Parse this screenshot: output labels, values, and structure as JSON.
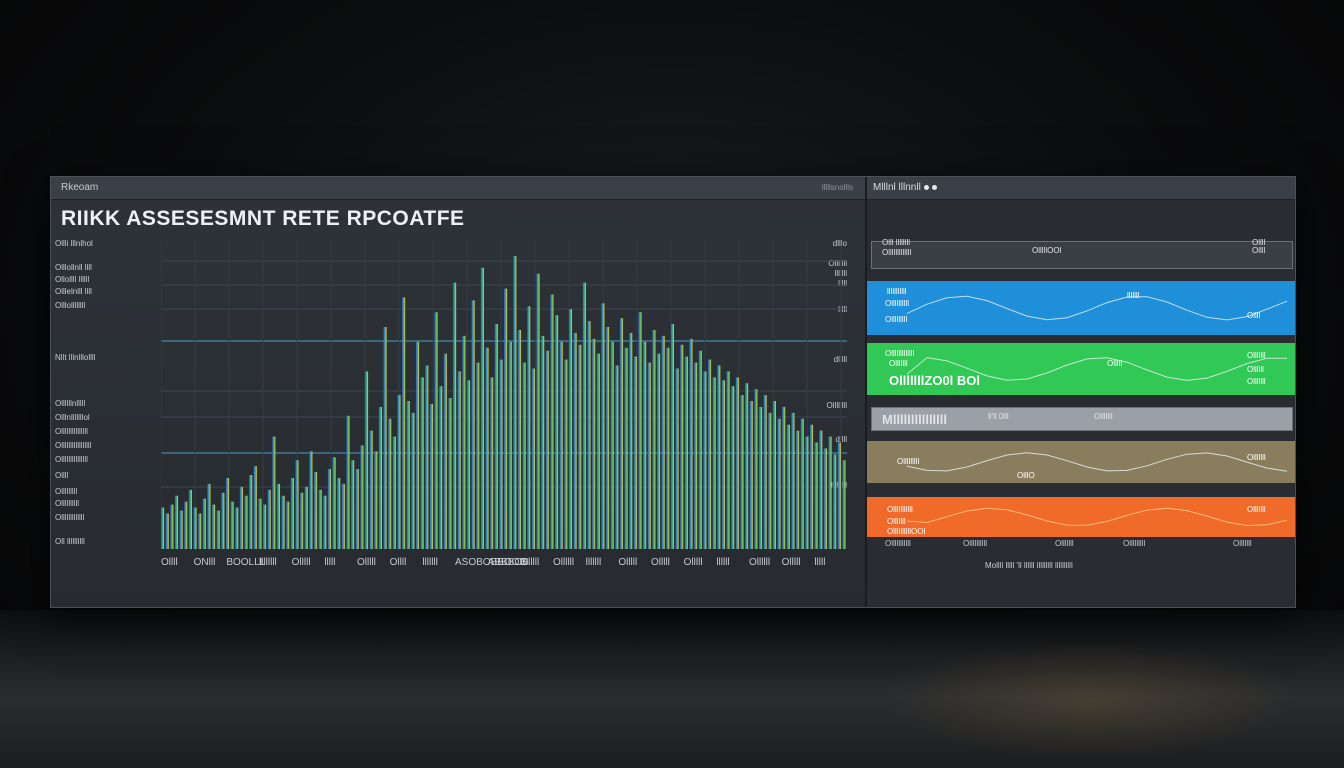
{
  "window": {
    "app_name": "Rkeoam",
    "right_menu": "lllllsnollls"
  },
  "report": {
    "title": "RIIKK ASSESESMNT RETE RPCOATFE"
  },
  "chart": {
    "y_labels_left": [
      "Ollli lllnlhol",
      "Olllollnll llll",
      "Ollollll llllll",
      "Olllelnlll llll",
      "Olllollllllll",
      "Nllt lllnlllollll",
      "Ollllllnlllll",
      "Olllnlllllllol",
      "Olllllllllllllll",
      "Olllllllllllllllll",
      "Olllllllllllllll",
      "Ollll",
      "Olllllllll",
      "Ollllllllll",
      "Olllllllllllll",
      "Oll llllllllll"
    ],
    "y_labels_right": [
      "dlllo",
      "Olllllll",
      "lllllll",
      "lllll",
      "lllll",
      "dlllll",
      "Ollllllll",
      "dllll",
      "lllllllll"
    ],
    "x_labels": [
      "Ollll",
      "ONlll",
      "BOOLLL",
      "llllllll",
      "Olllll",
      "lllll",
      "Olllll",
      "Ollll",
      "lllllll",
      "ASOBOBBOOB",
      "ABBBOB",
      "Olllll",
      "Ollllll",
      "lllllll",
      "Olllll",
      "Olllll",
      "Olllll",
      "llllll",
      "Ollllll",
      "Olllll",
      "lllll"
    ]
  },
  "chart_data": {
    "type": "bar",
    "title": "RIIKK ASSESESMNT RETE RPCOATFE",
    "series_count": 1,
    "values": [
      14,
      12,
      15,
      18,
      13,
      16,
      20,
      14,
      12,
      17,
      22,
      15,
      13,
      19,
      24,
      16,
      14,
      21,
      18,
      25,
      28,
      17,
      15,
      20,
      38,
      22,
      18,
      16,
      24,
      30,
      19,
      21,
      33,
      26,
      20,
      18,
      27,
      31,
      24,
      22,
      45,
      30,
      27,
      35,
      60,
      40,
      33,
      48,
      75,
      44,
      38,
      52,
      85,
      50,
      46,
      70,
      58,
      62,
      49,
      80,
      55,
      66,
      51,
      90,
      60,
      72,
      57,
      84,
      63,
      95,
      68,
      58,
      76,
      64,
      88,
      70,
      99,
      74,
      63,
      82,
      61,
      93,
      72,
      67,
      86,
      79,
      70,
      64,
      81,
      73,
      69,
      90,
      77,
      71,
      66,
      83,
      75,
      70,
      62,
      78,
      68,
      73,
      65,
      80,
      70,
      63,
      74,
      66,
      72,
      68,
      76,
      61,
      69,
      65,
      71,
      63,
      67,
      60,
      64,
      58,
      62,
      57,
      60,
      55,
      58,
      52,
      56,
      50,
      54,
      48,
      52,
      46,
      50,
      44,
      48,
      42,
      46,
      40,
      44,
      38,
      42,
      36,
      40,
      34,
      38,
      32,
      36,
      30
    ],
    "ylim": [
      0,
      100
    ],
    "grid": true
  },
  "right_panel": {
    "title": "Mlllnl lllnnll",
    "bands": [
      {
        "color": "#3a3f45",
        "labels": [
          "Olllllllllllll",
          "Olll llllllll",
          "OlllllOOl",
          "Ollll",
          "Ollll"
        ]
      },
      {
        "color": "#1f8fd9",
        "labels": [
          "lllllllllll",
          "Ollllllllll",
          "Olllllllll",
          "lllllll",
          "Ollll"
        ]
      },
      {
        "color": "#32c855",
        "labels": [
          "Olllllllllllll",
          "Olllllll",
          "OlllllllZO0l BOl",
          "Olllll",
          "Olllllll",
          "Ollllll",
          "Olllllll"
        ]
      },
      {
        "color": "#9aa0a6",
        "labels": [
          "Mlllllllllllllll",
          "ll'll 0lll",
          "Olllllll"
        ]
      },
      {
        "color": "#8a7d5e",
        "labels": [
          "Olllllllll",
          "OlllO",
          "Olllllll"
        ]
      },
      {
        "color": "#f06a2a",
        "labels": [
          "Olllllllllll",
          "Olllllll",
          "OllllllllllOOl",
          "Olllllll"
        ]
      }
    ],
    "footer_labels": [
      "Olllllllllll",
      "Ollllllllll",
      "Olllllll",
      "Olllllllll",
      "Olllllll"
    ],
    "caption": "Mollll lllll 'll llllll lllllllll llllllllll"
  }
}
